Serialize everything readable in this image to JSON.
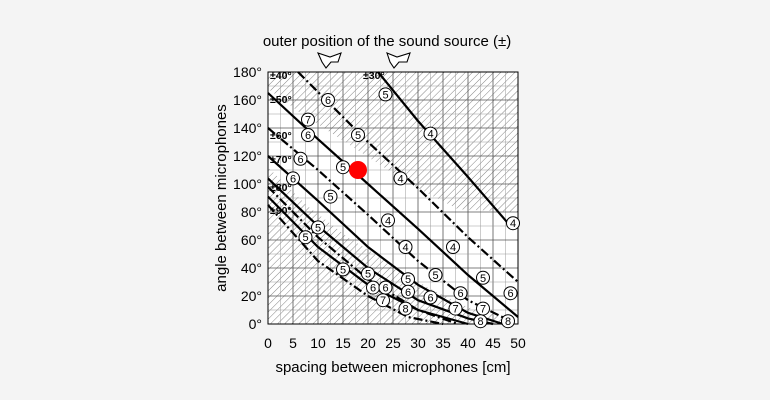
{
  "chart_data": {
    "type": "line",
    "title": "outer position of the sound source (±)",
    "xlabel": "spacing between microphones [cm]",
    "ylabel": "angle between microphones",
    "xlim": [
      0,
      50
    ],
    "ylim": [
      0,
      180
    ],
    "x_ticks": [
      "0",
      "5",
      "10",
      "15",
      "20",
      "25",
      "30",
      "35",
      "40",
      "45",
      "50"
    ],
    "y_ticks": [
      "0°",
      "20°",
      "40°",
      "60°",
      "80°",
      "100°",
      "120°",
      "140°",
      "160°",
      "180°"
    ],
    "grid": true,
    "hatched_region": "outside the valid recording-angle band (top-left and bottom-right)",
    "source_angle_labels": [
      "±30°",
      "±40°",
      "±50°",
      "±60°",
      "±70°",
      "±80°",
      "±90°"
    ],
    "series": [
      {
        "name": "±90°",
        "style": "solid",
        "points": [
          [
            0,
            91
          ],
          [
            10,
            55
          ],
          [
            20,
            28
          ],
          [
            30,
            10
          ],
          [
            40,
            0
          ]
        ]
      },
      {
        "name": "±90°",
        "style": "dashdot",
        "points": [
          [
            0,
            85
          ],
          [
            10,
            45
          ],
          [
            20,
            20
          ],
          [
            28,
            5
          ],
          [
            35,
            0
          ]
        ]
      },
      {
        "name": "±80°",
        "style": "solid",
        "points": [
          [
            0,
            104
          ],
          [
            10,
            70
          ],
          [
            20,
            40
          ],
          [
            30,
            17
          ],
          [
            40,
            4
          ],
          [
            45,
            0
          ]
        ]
      },
      {
        "name": "±80°",
        "style": "dashdot",
        "points": [
          [
            0,
            98
          ],
          [
            10,
            62
          ],
          [
            20,
            32
          ],
          [
            30,
            10
          ],
          [
            38,
            0
          ]
        ]
      },
      {
        "name": "±70°",
        "style": "solid",
        "points": [
          [
            0,
            120
          ],
          [
            10,
            88
          ],
          [
            20,
            55
          ],
          [
            30,
            28
          ],
          [
            40,
            8
          ],
          [
            47,
            0
          ]
        ]
      },
      {
        "name": "±60°",
        "style": "dashdot",
        "points": [
          [
            0,
            140
          ],
          [
            10,
            110
          ],
          [
            20,
            78
          ],
          [
            30,
            45
          ],
          [
            40,
            17
          ],
          [
            48,
            3
          ]
        ]
      },
      {
        "name": "±50°",
        "style": "solid",
        "points": [
          [
            0,
            165
          ],
          [
            10,
            132
          ],
          [
            20,
            100
          ],
          [
            30,
            68
          ],
          [
            40,
            35
          ],
          [
            50,
            5
          ]
        ]
      },
      {
        "name": "±40°",
        "style": "dashdot",
        "points": [
          [
            6,
            180
          ],
          [
            20,
            130
          ],
          [
            30,
            97
          ],
          [
            40,
            62
          ],
          [
            50,
            30
          ]
        ]
      },
      {
        "name": "±30°",
        "style": "solid",
        "points": [
          [
            22,
            180
          ],
          [
            30,
            145
          ],
          [
            40,
            105
          ],
          [
            48,
            72
          ]
        ]
      }
    ],
    "circle_labels": [
      {
        "x": 12,
        "y": 160,
        "t": "6"
      },
      {
        "x": 8,
        "y": 146,
        "t": "7"
      },
      {
        "x": 23.5,
        "y": 164,
        "t": "5"
      },
      {
        "x": 32.5,
        "y": 136,
        "t": "4"
      },
      {
        "x": 18,
        "y": 135,
        "t": "5"
      },
      {
        "x": 8,
        "y": 135,
        "t": "6"
      },
      {
        "x": 6.5,
        "y": 118,
        "t": "6"
      },
      {
        "x": 15,
        "y": 112,
        "t": "5"
      },
      {
        "x": 26.5,
        "y": 104,
        "t": "4"
      },
      {
        "x": 5,
        "y": 104,
        "t": "6"
      },
      {
        "x": 12.5,
        "y": 91,
        "t": "5"
      },
      {
        "x": 49,
        "y": 72,
        "t": "4"
      },
      {
        "x": 24,
        "y": 74,
        "t": "4"
      },
      {
        "x": 27.5,
        "y": 55,
        "t": "4"
      },
      {
        "x": 37,
        "y": 55,
        "t": "4"
      },
      {
        "x": 10,
        "y": 69,
        "t": "5"
      },
      {
        "x": 7.5,
        "y": 62,
        "t": "5"
      },
      {
        "x": 15,
        "y": 39,
        "t": "5"
      },
      {
        "x": 20,
        "y": 36,
        "t": "5"
      },
      {
        "x": 21,
        "y": 26,
        "t": "6"
      },
      {
        "x": 23.5,
        "y": 26,
        "t": "6"
      },
      {
        "x": 28,
        "y": 32,
        "t": "5"
      },
      {
        "x": 33.5,
        "y": 35,
        "t": "5"
      },
      {
        "x": 43,
        "y": 33,
        "t": "5"
      },
      {
        "x": 28,
        "y": 23,
        "t": "6"
      },
      {
        "x": 32.5,
        "y": 19,
        "t": "6"
      },
      {
        "x": 38.5,
        "y": 22,
        "t": "6"
      },
      {
        "x": 48.5,
        "y": 22,
        "t": "6"
      },
      {
        "x": 23,
        "y": 17,
        "t": "7"
      },
      {
        "x": 37.5,
        "y": 11,
        "t": "7"
      },
      {
        "x": 43,
        "y": 11,
        "t": "7"
      },
      {
        "x": 27.5,
        "y": 11,
        "t": "8"
      },
      {
        "x": 42.5,
        "y": 2,
        "t": "8"
      },
      {
        "x": 48,
        "y": 2,
        "t": "8"
      }
    ],
    "marker": {
      "x": 18,
      "y": 110,
      "color": "#ff0000"
    }
  }
}
